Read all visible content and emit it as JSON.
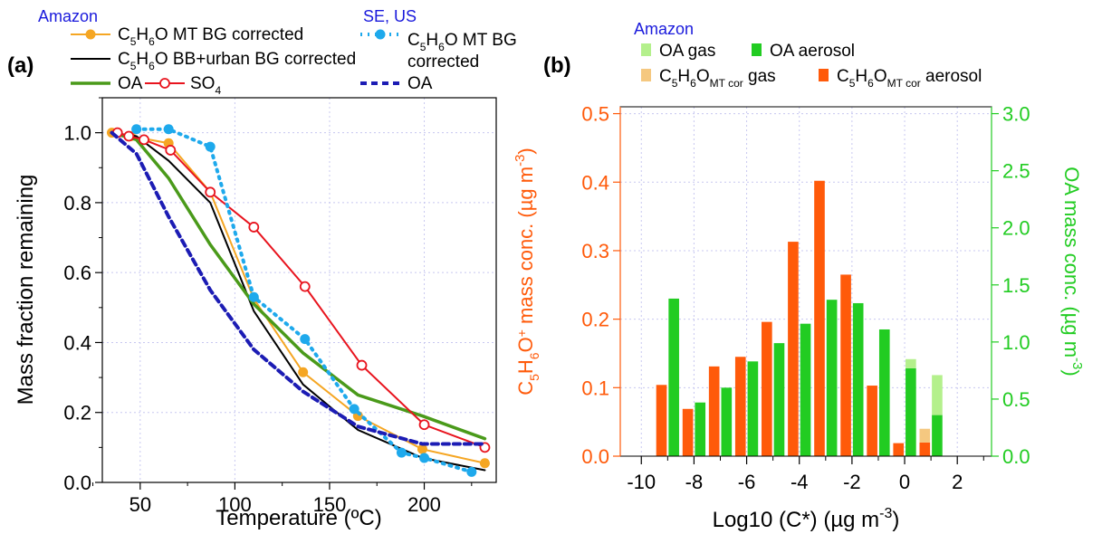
{
  "chart_data": [
    {
      "panel_label": "(a)",
      "type": "line",
      "xlabel": "Temperature (ºC)",
      "ylabel": "Mass fraction remaining",
      "xlim": [
        30,
        238
      ],
      "ylim": [
        0,
        1.1
      ],
      "xticks": [
        50,
        100,
        150,
        200
      ],
      "yticks": [
        0.0,
        0.2,
        0.4,
        0.6,
        0.8,
        1.0
      ],
      "grid": true,
      "legend_groups": [
        "Amazon",
        "SE, US"
      ],
      "series": [
        {
          "name": "C5H6O MT BG corrected",
          "group": "Amazon",
          "color": "#f5a623",
          "marker": "filled-circle",
          "dash": "solid",
          "x": [
            35,
            45,
            65,
            87,
            110,
            136,
            165,
            199,
            232
          ],
          "y": [
            1.0,
            0.99,
            0.97,
            0.83,
            0.525,
            0.315,
            0.19,
            0.095,
            0.055
          ]
        },
        {
          "name": "C5H6O BB+urban BG corrected",
          "group": "Amazon",
          "color": "#000000",
          "marker": "none",
          "dash": "solid",
          "x": [
            35,
            48,
            65,
            87,
            110,
            136,
            165,
            199,
            232
          ],
          "y": [
            1.0,
            0.99,
            0.92,
            0.8,
            0.49,
            0.28,
            0.15,
            0.07,
            0.035
          ]
        },
        {
          "name": "OA",
          "group": "Amazon",
          "color": "#4a9a1a",
          "marker": "none",
          "dash": "solid",
          "x": [
            35,
            48,
            65,
            87,
            110,
            136,
            165,
            199,
            232
          ],
          "y": [
            1.0,
            0.98,
            0.87,
            0.68,
            0.51,
            0.37,
            0.25,
            0.19,
            0.125
          ]
        },
        {
          "name": "SO4",
          "group": "Amazon",
          "color": "#e8141e",
          "marker": "open-circle",
          "dash": "solid",
          "x": [
            38,
            44,
            52,
            66,
            87,
            110,
            137,
            167,
            200,
            232
          ],
          "y": [
            1.0,
            0.99,
            0.98,
            0.95,
            0.83,
            0.73,
            0.56,
            0.335,
            0.165,
            0.1
          ]
        },
        {
          "name": "C5H6O MT BG corrected",
          "group": "SE, US",
          "color": "#1ea9ec",
          "marker": "filled-circle",
          "dash": "dotted",
          "x": [
            48,
            65,
            87,
            110,
            137,
            163,
            188,
            200,
            225
          ],
          "y": [
            1.01,
            1.01,
            0.96,
            0.53,
            0.41,
            0.21,
            0.085,
            0.07,
            0.03
          ]
        },
        {
          "name": "OA",
          "group": "SE, US",
          "color": "#1c1cb4",
          "marker": "none",
          "dash": "dashed",
          "x": [
            35,
            48,
            65,
            87,
            110,
            136,
            165,
            199,
            232
          ],
          "y": [
            1.0,
            0.94,
            0.76,
            0.55,
            0.38,
            0.26,
            0.16,
            0.11,
            0.11
          ]
        }
      ]
    },
    {
      "panel_label": "(b)",
      "type": "bar",
      "legend_group": "Amazon",
      "xlabel": "Log10 (C*) (µg m",
      "xlabel_sup": "-3",
      "xlabel_end": ")",
      "ylabel_left": "C5H6O+ mass conc. (µg m-3)",
      "ylabel_right": "OA mass conc. (µg m-3)",
      "left_color": "#ff5a0a",
      "right_color": "#22cc22",
      "xlim": [
        -10.8,
        3.3
      ],
      "ylim_left": [
        0,
        0.51
      ],
      "ylim_right": [
        0,
        3.06
      ],
      "xticks": [
        -10,
        -8,
        -6,
        -4,
        -2,
        0,
        2
      ],
      "yticks_left": [
        0.0,
        0.1,
        0.2,
        0.3,
        0.4,
        0.5
      ],
      "yticks_right": [
        0.0,
        0.5,
        1.0,
        1.5,
        2.0,
        2.5,
        3.0
      ],
      "grid": true,
      "categories": [
        -9,
        -8,
        -7,
        -6,
        -5,
        -4,
        -3,
        -2,
        -1,
        0,
        1
      ],
      "series": [
        {
          "name": "OA gas",
          "color": "#b4f08c",
          "axis": "right",
          "values": [
            0,
            0,
            0,
            0,
            0,
            0,
            0,
            0,
            0,
            0.08,
            0.35
          ]
        },
        {
          "name": "OA aerosol",
          "color": "#22cc22",
          "axis": "right",
          "values": [
            1.38,
            0.47,
            0.6,
            0.83,
            0.99,
            1.16,
            1.37,
            1.34,
            1.11,
            0.77,
            0.36
          ]
        },
        {
          "name": "C5H6OMT cor gas",
          "color": "#f5c880",
          "axis": "left",
          "values": [
            0,
            0,
            0,
            0,
            0,
            0,
            0,
            0,
            0,
            0,
            0.02
          ]
        },
        {
          "name": "C5H6OMT cor aerosol",
          "color": "#ff5a0a",
          "axis": "left",
          "values": [
            0.104,
            0.069,
            0.131,
            0.145,
            0.196,
            0.313,
            0.402,
            0.265,
            0.103,
            0.019,
            0.02
          ]
        }
      ]
    }
  ]
}
